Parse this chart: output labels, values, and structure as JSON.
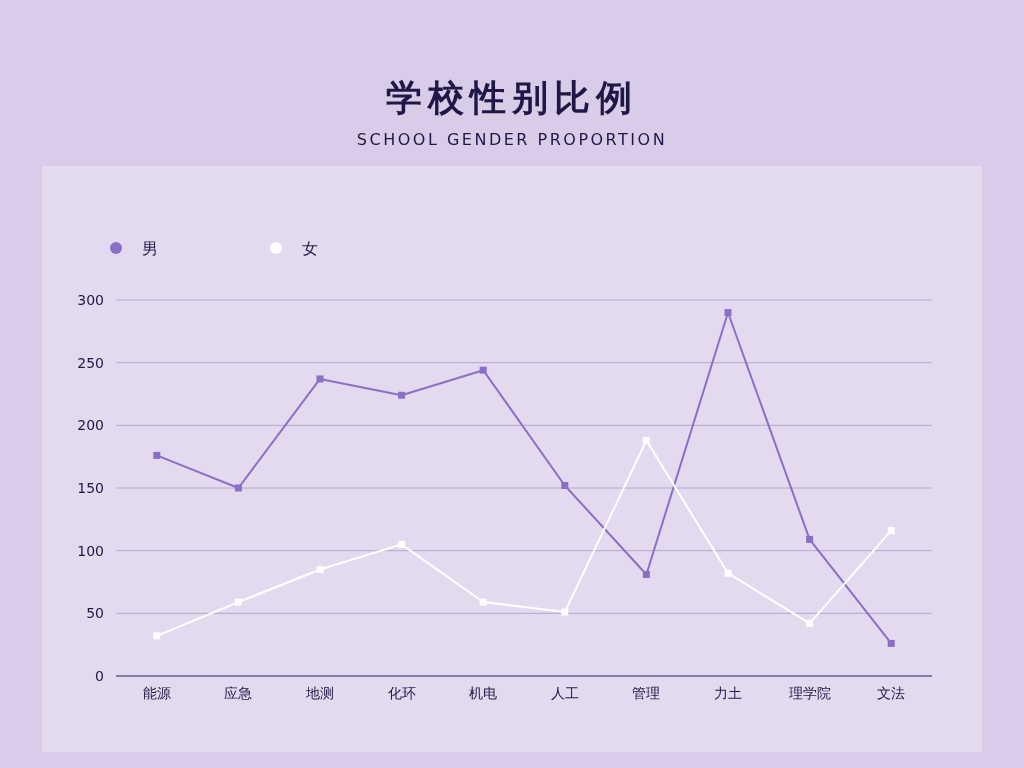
{
  "chart_data": {
    "type": "line",
    "title": "学校性别比例",
    "subtitle": "SCHOOL GENDER PROPORTION",
    "categories": [
      "能源",
      "应急",
      "地测",
      "化环",
      "机电",
      "人工",
      "管理",
      "力土",
      "理学院",
      "文法"
    ],
    "series": [
      {
        "name": "男",
        "color": "#8a6fc7",
        "values": [
          176,
          150,
          237,
          224,
          244,
          152,
          81,
          290,
          109,
          26
        ]
      },
      {
        "name": "女",
        "color": "#ffffff",
        "values": [
          32,
          59,
          85,
          105,
          59,
          51,
          188,
          82,
          42,
          116
        ]
      }
    ],
    "ylim": [
      0,
      300
    ],
    "yticks": [
      0,
      50,
      100,
      150,
      200,
      250,
      300
    ],
    "grid": "y",
    "legend": "top left",
    "marker": "square"
  }
}
